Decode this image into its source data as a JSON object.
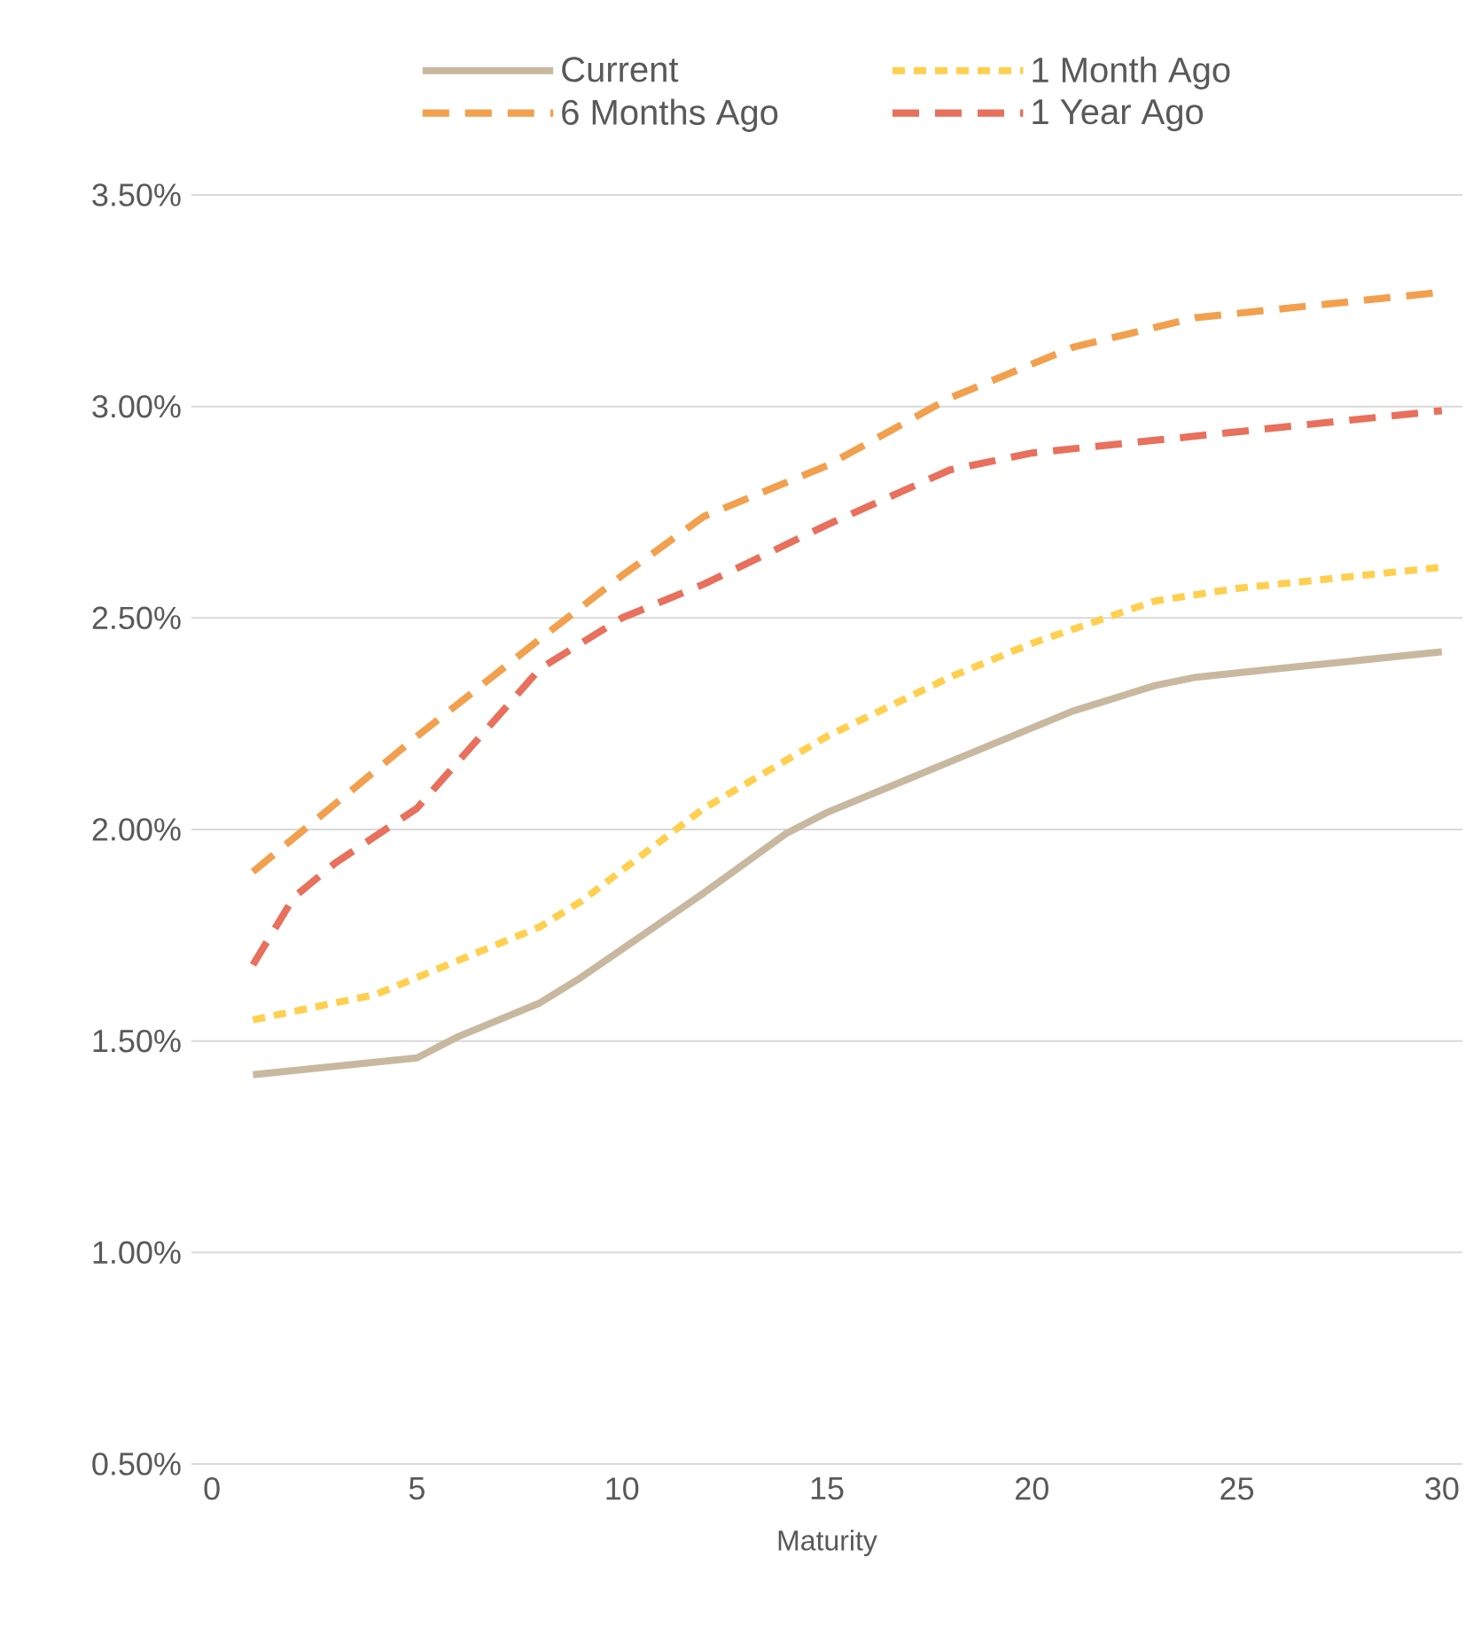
{
  "chart_data": {
    "type": "line",
    "xlabel": "Maturity",
    "xlim": [
      -0.5,
      30.5
    ],
    "xticks": [
      0,
      5,
      10,
      15,
      20,
      25,
      30
    ],
    "ylim": [
      0.5,
      3.5
    ],
    "yticks": [
      {
        "value": 0.5,
        "label": "0.50%"
      },
      {
        "value": 1.0,
        "label": "1.00%"
      },
      {
        "value": 1.5,
        "label": "1.50%"
      },
      {
        "value": 2.0,
        "label": "2.00%"
      },
      {
        "value": 2.5,
        "label": "2.50%"
      },
      {
        "value": 3.0,
        "label": "3.00%"
      },
      {
        "value": 3.5,
        "label": "3.50%"
      }
    ],
    "grid": "y",
    "legend": "top",
    "marker": "none",
    "series": [
      {
        "name": "Current",
        "color": "#c9b8a0",
        "line_style": "solid",
        "x": [
          1,
          3,
          5,
          6,
          8,
          9,
          12,
          14,
          15,
          18,
          21,
          23,
          24,
          26,
          30
        ],
        "values": [
          1.42,
          1.44,
          1.46,
          1.51,
          1.59,
          1.65,
          1.85,
          1.99,
          2.04,
          2.16,
          2.28,
          2.34,
          2.36,
          2.38,
          2.42
        ]
      },
      {
        "name": "1 Month Ago",
        "color": "#ffd04f",
        "line_style": "dotted",
        "x": [
          1,
          3,
          4,
          5,
          8,
          9,
          12,
          15,
          18,
          20,
          23,
          25,
          30
        ],
        "values": [
          1.55,
          1.59,
          1.61,
          1.65,
          1.77,
          1.83,
          2.05,
          2.22,
          2.36,
          2.44,
          2.54,
          2.57,
          2.62
        ]
      },
      {
        "name": "6 Months Ago",
        "color": "#f2a04e",
        "line_style": "dashed",
        "x": [
          1,
          5,
          8,
          10,
          12,
          15,
          18,
          21,
          24,
          30
        ],
        "values": [
          1.9,
          2.22,
          2.45,
          2.6,
          2.74,
          2.86,
          3.02,
          3.14,
          3.21,
          3.27
        ]
      },
      {
        "name": "1 Year Ago",
        "color": "#e8705c",
        "line_style": "dashed",
        "x": [
          1,
          2,
          3,
          5,
          8,
          10,
          12,
          15,
          18,
          20,
          23,
          30
        ],
        "values": [
          1.68,
          1.84,
          1.92,
          2.05,
          2.38,
          2.5,
          2.58,
          2.72,
          2.85,
          2.89,
          2.92,
          2.99
        ]
      }
    ]
  }
}
